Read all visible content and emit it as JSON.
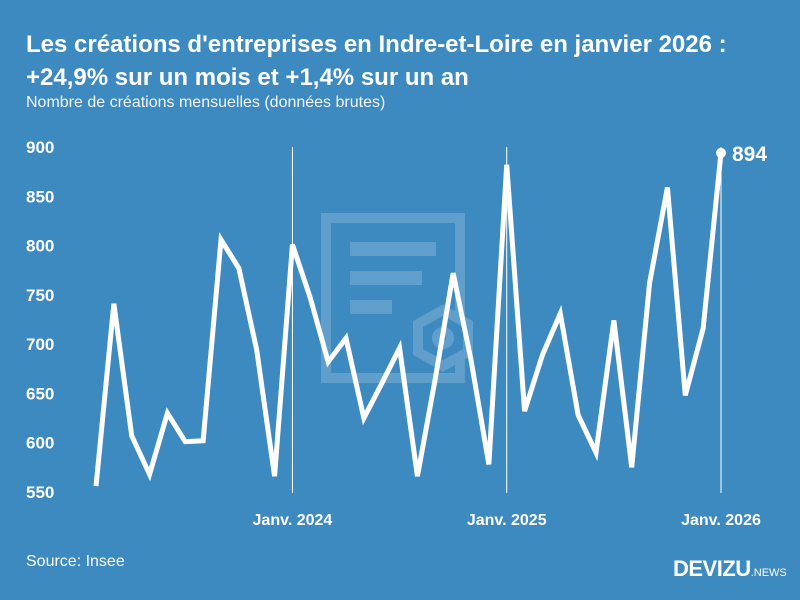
{
  "title_line1": "Les créations d'entreprises en Indre-et-Loire en janvier 2026 :",
  "title_line2": "+24,9% sur un mois et +1,4% sur un an",
  "subtitle": "Nombre de créations mensuelles (données brutes)",
  "source": "Source: Insee",
  "logo": {
    "main": "DEVIZU",
    "suffix": "NEWS"
  },
  "colors": {
    "background": "#3d8ac1",
    "line": "#ffffff"
  },
  "chart_data": {
    "type": "line",
    "x": [
      "2023-02",
      "2023-03",
      "2023-04",
      "2023-05",
      "2023-06",
      "2023-07",
      "2023-08",
      "2023-09",
      "2023-10",
      "2023-11",
      "2023-12",
      "2024-01",
      "2024-02",
      "2024-03",
      "2024-04",
      "2024-05",
      "2024-06",
      "2024-07",
      "2024-08",
      "2024-09",
      "2024-10",
      "2024-11",
      "2024-12",
      "2025-01",
      "2025-02",
      "2025-03",
      "2025-04",
      "2025-05",
      "2025-06",
      "2025-07",
      "2025-08",
      "2025-09",
      "2025-10",
      "2025-11",
      "2025-12",
      "2026-01"
    ],
    "values": [
      556,
      741,
      607,
      568,
      630,
      601,
      602,
      806,
      777,
      694,
      566,
      801,
      747,
      682,
      706,
      625,
      660,
      696,
      566,
      665,
      772,
      684,
      578,
      882,
      632,
      689,
      731,
      628,
      590,
      724,
      575,
      762,
      859,
      648,
      716,
      894
    ],
    "ylim": [
      550,
      900
    ],
    "yticks": [
      550,
      600,
      650,
      700,
      750,
      800,
      850,
      900
    ],
    "xticks": [
      {
        "x": "2024-01",
        "label": "Janv. 2024"
      },
      {
        "x": "2025-01",
        "label": "Janv. 2025"
      },
      {
        "x": "2026-01",
        "label": "Janv. 2026"
      }
    ],
    "last_label": "894",
    "grid": false
  }
}
